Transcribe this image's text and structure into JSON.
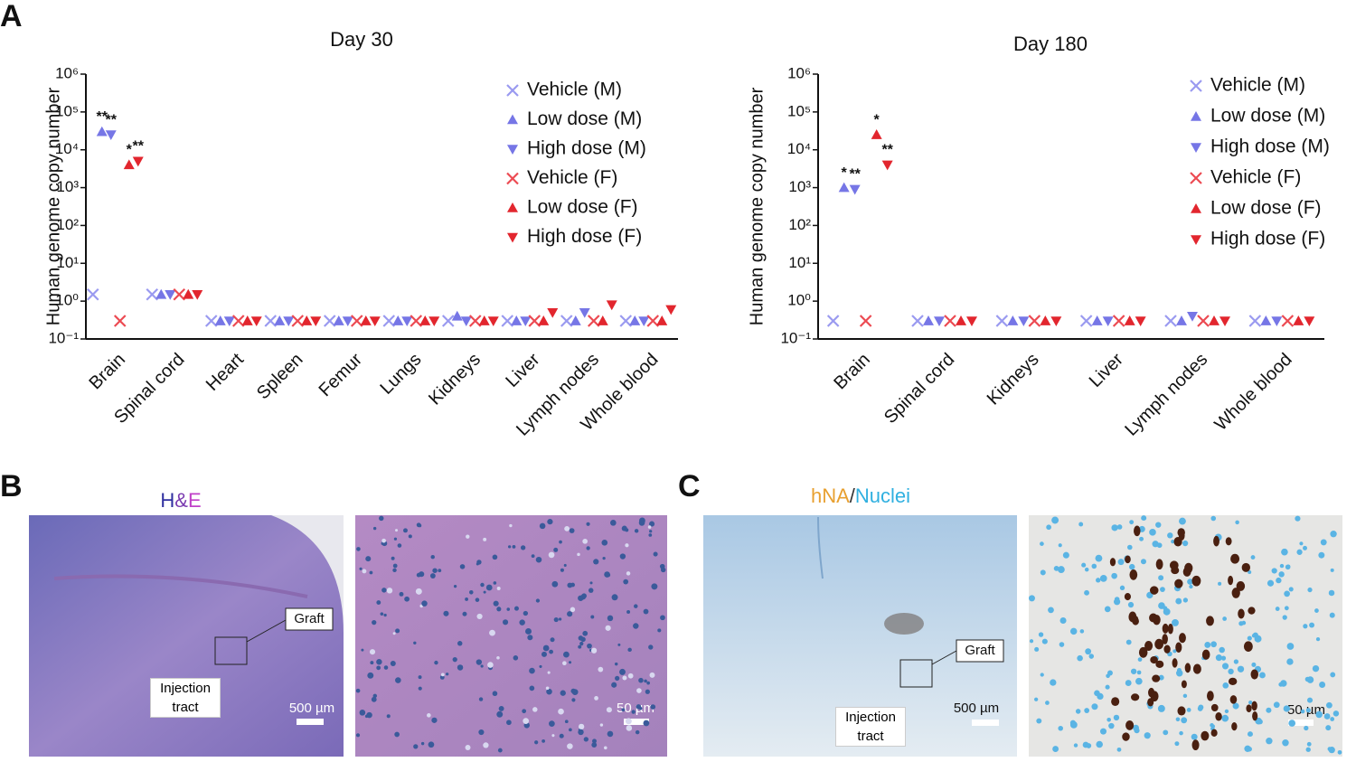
{
  "figure": {
    "panels": [
      "A",
      "B",
      "C"
    ]
  },
  "chart_data": [
    {
      "type": "scatter",
      "title": "Day 30",
      "y_label": "Human genome copy number",
      "log_y": true,
      "ylim": [
        0.1,
        1000000
      ],
      "yticks": [
        {
          "value": 0.1,
          "label": "10⁻¹"
        },
        {
          "value": 1,
          "label": "10⁰"
        },
        {
          "value": 10,
          "label": "10¹"
        },
        {
          "value": 100,
          "label": "10²"
        },
        {
          "value": 1000,
          "label": "10³"
        },
        {
          "value": 10000,
          "label": "10⁴"
        },
        {
          "value": 100000,
          "label": "10⁵"
        },
        {
          "value": 1000000,
          "label": "10⁶"
        }
      ],
      "categories": [
        "Brain",
        "Spinal cord",
        "Heart",
        "Spleen",
        "Femur",
        "Lungs",
        "Kidneys",
        "Liver",
        "Lymph nodes",
        "Whole blood"
      ],
      "legend": "upper right",
      "series": [
        {
          "name": "Vehicle (M)",
          "color": "#9a9af0",
          "marker": "x",
          "values": [
            1.5,
            1.5,
            0.3,
            0.3,
            0.3,
            0.3,
            0.3,
            0.3,
            0.3,
            0.3
          ],
          "significance": [
            null,
            null,
            null,
            null,
            null,
            null,
            null,
            null,
            null,
            null
          ]
        },
        {
          "name": "Low dose (M)",
          "color": "#7676e6",
          "marker": "triangle-up",
          "values": [
            30000,
            1.5,
            0.3,
            0.3,
            0.3,
            0.3,
            0.4,
            0.3,
            0.3,
            0.3
          ],
          "significance": [
            "**",
            null,
            null,
            null,
            null,
            null,
            null,
            null,
            null,
            null
          ]
        },
        {
          "name": "High dose (M)",
          "color": "#7676e6",
          "marker": "triangle-down",
          "values": [
            25000,
            1.5,
            0.3,
            0.3,
            0.3,
            0.3,
            0.3,
            0.3,
            0.5,
            0.3
          ],
          "significance": [
            "**",
            null,
            null,
            null,
            null,
            null,
            null,
            null,
            null,
            null
          ]
        },
        {
          "name": "Vehicle (F)",
          "color": "#ec4a52",
          "marker": "x",
          "values": [
            0.3,
            1.5,
            0.3,
            0.3,
            0.3,
            0.3,
            0.3,
            0.3,
            0.3,
            0.3
          ],
          "significance": [
            null,
            null,
            null,
            null,
            null,
            null,
            null,
            null,
            null,
            null
          ]
        },
        {
          "name": "Low dose (F)",
          "color": "#e2262e",
          "marker": "triangle-up",
          "values": [
            4000,
            1.5,
            0.3,
            0.3,
            0.3,
            0.3,
            0.3,
            0.3,
            0.3,
            0.3
          ],
          "significance": [
            "*",
            null,
            null,
            null,
            null,
            null,
            null,
            null,
            null,
            null
          ]
        },
        {
          "name": "High dose (F)",
          "color": "#e2262e",
          "marker": "triangle-down",
          "values": [
            5000,
            1.5,
            0.3,
            0.3,
            0.3,
            0.3,
            0.3,
            0.5,
            0.8,
            0.6
          ],
          "significance": [
            "**",
            null,
            null,
            null,
            null,
            null,
            null,
            null,
            null,
            null
          ]
        }
      ]
    },
    {
      "type": "scatter",
      "title": "Day 180",
      "y_label": "Human genome copy number",
      "log_y": true,
      "ylim": [
        0.1,
        1000000
      ],
      "yticks": [
        {
          "value": 0.1,
          "label": "10⁻¹"
        },
        {
          "value": 1,
          "label": "10⁰"
        },
        {
          "value": 10,
          "label": "10¹"
        },
        {
          "value": 100,
          "label": "10²"
        },
        {
          "value": 1000,
          "label": "10³"
        },
        {
          "value": 10000,
          "label": "10⁴"
        },
        {
          "value": 100000,
          "label": "10⁵"
        },
        {
          "value": 1000000,
          "label": "10⁶"
        }
      ],
      "categories": [
        "Brain",
        "Spinal cord",
        "Kidneys",
        "Liver",
        "Lymph nodes",
        "Whole blood"
      ],
      "legend": "upper right",
      "series": [
        {
          "name": "Vehicle (M)",
          "color": "#9a9af0",
          "marker": "x",
          "values": [
            0.3,
            0.3,
            0.3,
            0.3,
            0.3,
            0.3
          ],
          "significance": [
            null,
            null,
            null,
            null,
            null,
            null
          ]
        },
        {
          "name": "Low dose (M)",
          "color": "#7676e6",
          "marker": "triangle-up",
          "values": [
            1000,
            0.3,
            0.3,
            0.3,
            0.3,
            0.3
          ],
          "significance": [
            "*",
            null,
            null,
            null,
            null,
            null
          ]
        },
        {
          "name": "High dose (M)",
          "color": "#7676e6",
          "marker": "triangle-down",
          "values": [
            900,
            0.3,
            0.3,
            0.3,
            0.4,
            0.3
          ],
          "significance": [
            "**",
            null,
            null,
            null,
            null,
            null
          ]
        },
        {
          "name": "Vehicle (F)",
          "color": "#ec4a52",
          "marker": "x",
          "values": [
            0.3,
            0.3,
            0.3,
            0.3,
            0.3,
            0.3
          ],
          "significance": [
            null,
            null,
            null,
            null,
            null,
            null
          ]
        },
        {
          "name": "Low dose (F)",
          "color": "#e2262e",
          "marker": "triangle-up",
          "values": [
            25000,
            0.3,
            0.3,
            0.3,
            0.3,
            0.3
          ],
          "significance": [
            "*",
            null,
            null,
            null,
            null,
            null
          ]
        },
        {
          "name": "High dose (F)",
          "color": "#e2262e",
          "marker": "triangle-down",
          "values": [
            4000,
            0.3,
            0.3,
            0.3,
            0.3,
            0.3
          ],
          "significance": [
            "**",
            null,
            null,
            null,
            null,
            null
          ]
        }
      ]
    }
  ],
  "panel_b": {
    "title_parts": [
      "H",
      "&",
      "E"
    ],
    "overview": {
      "graft": "Graft",
      "tract": "Injection tract",
      "scale_bar": "500 µm"
    },
    "detail": {
      "scale_bar": "50 µm"
    }
  },
  "panel_c": {
    "title_parts": [
      "hNA",
      "/",
      "Nuclei"
    ],
    "overview": {
      "graft": "Graft",
      "tract": "Injection tract",
      "scale_bar": "500 µm"
    },
    "detail": {
      "scale_bar": "50 µm"
    }
  }
}
